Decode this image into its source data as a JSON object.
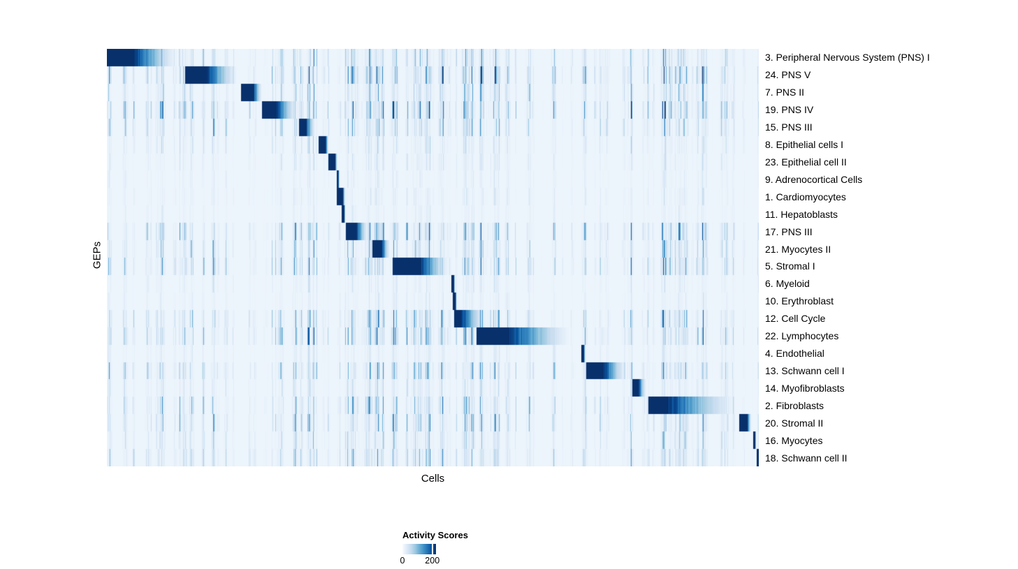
{
  "figure": {
    "xlabel": "Cells",
    "ylabel": "GEPs",
    "background": "#ffffff"
  },
  "legend": {
    "title": "Activity Scores",
    "tick_labels": [
      "0",
      "200"
    ],
    "tick_positions": [
      0,
      0.89
    ],
    "gradient_stops": [
      "#f7fbff",
      "#deebf7",
      "#c6dbef",
      "#9ecae1",
      "#6baed6",
      "#4292c6",
      "#2171b5",
      "#08519c",
      "#08306b"
    ]
  },
  "chart_data": {
    "type": "heatmap",
    "title": "",
    "xlabel": "Cells",
    "ylabel": "GEPs",
    "value_label": "Activity Scores",
    "value_ticks": [
      0,
      200
    ],
    "value_range": [
      0,
      225
    ],
    "colormap": "Blues (white to dark navy)",
    "description": "Each GEP (row) shows a contiguous block of high activity-score cells along the diagonal, with a sharp left edge and gradual right-side fade, plus sparse vertical low-activity streaks elsewhere. Block positions are fractions of the cells axis (0-1).",
    "rows": [
      {
        "label": "3. Peripheral Nervous System (PNS) I",
        "start": 0.0,
        "peak_end": 0.042,
        "fade_end": 0.117,
        "noise": 0.55
      },
      {
        "label": "24. PNS V",
        "start": 0.12,
        "peak_end": 0.152,
        "fade_end": 0.208,
        "noise": 0.8
      },
      {
        "label": "7. PNS II",
        "start": 0.206,
        "peak_end": 0.224,
        "fade_end": 0.24,
        "noise": 0.5
      },
      {
        "label": "19. PNS IV",
        "start": 0.238,
        "peak_end": 0.26,
        "fade_end": 0.295,
        "noise": 0.85
      },
      {
        "label": "15. PNS III",
        "start": 0.294,
        "peak_end": 0.305,
        "fade_end": 0.322,
        "noise": 0.6
      },
      {
        "label": "8. Epithelial cells I",
        "start": 0.325,
        "peak_end": 0.335,
        "fade_end": 0.341,
        "noise": 0.25
      },
      {
        "label": "23. Epithelial cell II",
        "start": 0.34,
        "peak_end": 0.35,
        "fade_end": 0.354,
        "noise": 0.18
      },
      {
        "label": "9. Adrenocortical Cells",
        "start": 0.352,
        "peak_end": 0.355,
        "fade_end": 0.357,
        "noise": 0.12
      },
      {
        "label": "1. Cardiomyocytes",
        "start": 0.353,
        "peak_end": 0.362,
        "fade_end": 0.366,
        "noise": 0.15
      },
      {
        "label": "11. Hepatoblasts",
        "start": 0.36,
        "peak_end": 0.364,
        "fade_end": 0.366,
        "noise": 0.1
      },
      {
        "label": "17. PNS III",
        "start": 0.366,
        "peak_end": 0.382,
        "fade_end": 0.403,
        "noise": 0.7
      },
      {
        "label": "21. Myocytes II",
        "start": 0.407,
        "peak_end": 0.421,
        "fade_end": 0.436,
        "noise": 0.5
      },
      {
        "label": "5. Stromal I",
        "start": 0.438,
        "peak_end": 0.48,
        "fade_end": 0.532,
        "noise": 0.65
      },
      {
        "label": "6. Myeloid",
        "start": 0.528,
        "peak_end": 0.532,
        "fade_end": 0.535,
        "noise": 0.15
      },
      {
        "label": "10. Erythroblast",
        "start": 0.531,
        "peak_end": 0.535,
        "fade_end": 0.537,
        "noise": 0.12
      },
      {
        "label": "12. Cell Cycle",
        "start": 0.533,
        "peak_end": 0.544,
        "fade_end": 0.585,
        "noise": 0.65
      },
      {
        "label": "22. Lymphocytes",
        "start": 0.567,
        "peak_end": 0.618,
        "fade_end": 0.726,
        "noise": 0.7
      },
      {
        "label": "4. Endothelial",
        "start": 0.728,
        "peak_end": 0.732,
        "fade_end": 0.735,
        "noise": 0.15
      },
      {
        "label": "13. Schwann cell I",
        "start": 0.736,
        "peak_end": 0.762,
        "fade_end": 0.802,
        "noise": 0.6
      },
      {
        "label": "14. Myofibroblasts",
        "start": 0.806,
        "peak_end": 0.815,
        "fade_end": 0.83,
        "noise": 0.25
      },
      {
        "label": "2. Fibroblasts",
        "start": 0.831,
        "peak_end": 0.861,
        "fade_end": 0.981,
        "noise": 0.6
      },
      {
        "label": "20. Stromal II",
        "start": 0.97,
        "peak_end": 0.983,
        "fade_end": 0.99,
        "noise": 0.55
      },
      {
        "label": "16. Myocytes",
        "start": 0.992,
        "peak_end": 0.995,
        "fade_end": 0.997,
        "noise": 0.35
      },
      {
        "label": "18. Schwann cell II",
        "start": 0.997,
        "peak_end": 1.0,
        "fade_end": 1.0,
        "noise": 0.5
      }
    ]
  }
}
